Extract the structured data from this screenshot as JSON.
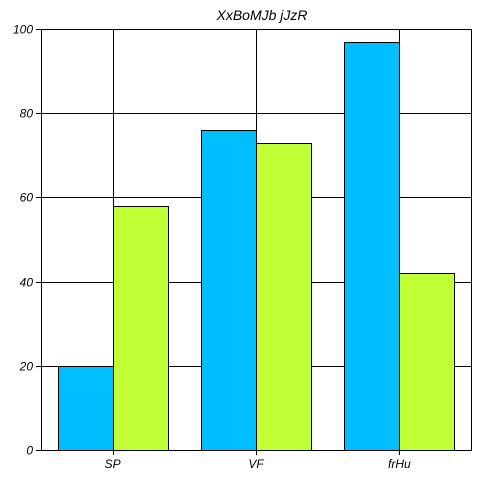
{
  "chart_data": {
    "type": "bar",
    "title": "XxBoMJb jJzR",
    "xlabel": "",
    "ylabel": "",
    "categories": [
      "SP",
      "VF",
      "frHu"
    ],
    "ylim": [
      0,
      100
    ],
    "yticks": [
      0,
      20,
      40,
      60,
      80,
      100
    ],
    "grid": true,
    "legend": "none",
    "series": [
      {
        "values": [
          20,
          76,
          97
        ],
        "color": "#00bfff"
      },
      {
        "values": [
          58,
          73,
          42
        ],
        "color": "#c0ff33"
      }
    ]
  }
}
